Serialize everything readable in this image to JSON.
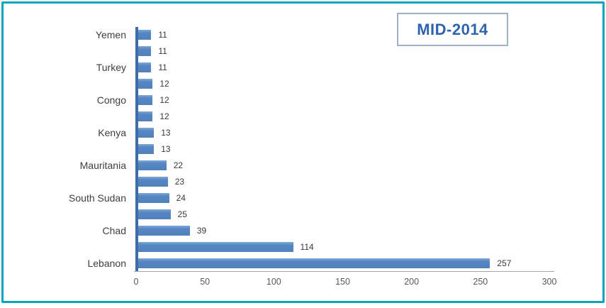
{
  "title_box": {
    "label": "MID-2014"
  },
  "colors": {
    "frame_border": "#0aa6bc",
    "bar_fill": "#4f81bd",
    "y_axis_line": "#3d6da6",
    "x_axis_line": "#a6a6a6",
    "title_text": "#2e63ad",
    "title_border": "#9fb0c7",
    "label_text": "#3f3f3f",
    "tick_text": "#595959"
  },
  "chart_data": {
    "type": "bar",
    "orientation": "horizontal",
    "title": "MID-2014",
    "xlabel": "",
    "ylabel": "",
    "xlim": [
      0,
      300
    ],
    "x_ticks": [
      0,
      50,
      100,
      150,
      200,
      250,
      300
    ],
    "grid": false,
    "legend": false,
    "bar_labels_shown": true,
    "rows": [
      {
        "label": "Yemen",
        "value": 11
      },
      {
        "label": "",
        "value": 11
      },
      {
        "label": "Turkey",
        "value": 11
      },
      {
        "label": "",
        "value": 12
      },
      {
        "label": "Congo",
        "value": 12
      },
      {
        "label": "",
        "value": 12
      },
      {
        "label": "Kenya",
        "value": 13
      },
      {
        "label": "",
        "value": 13
      },
      {
        "label": "Mauritania",
        "value": 22
      },
      {
        "label": "",
        "value": 23
      },
      {
        "label": "South Sudan",
        "value": 24
      },
      {
        "label": "",
        "value": 25
      },
      {
        "label": "Chad",
        "value": 39
      },
      {
        "label": "",
        "value": 114
      },
      {
        "label": "Lebanon",
        "value": 257
      }
    ]
  }
}
